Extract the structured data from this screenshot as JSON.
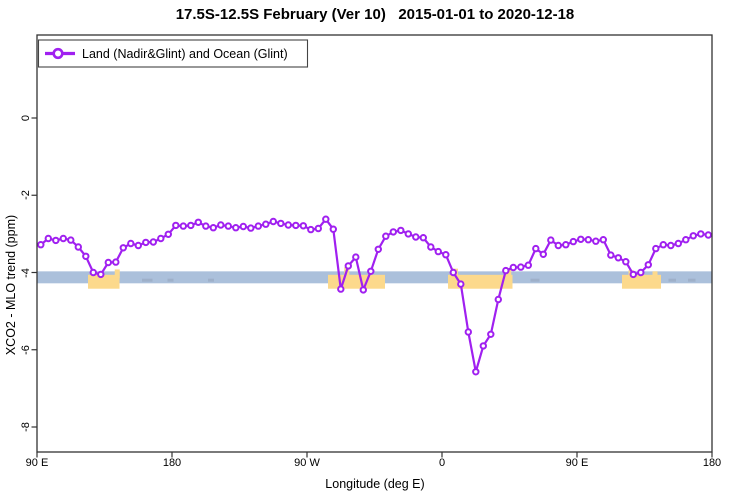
{
  "chart_data": {
    "type": "line",
    "title": "17.5S-12.5S February (Ver 10)   2015-01-01 to 2020-12-18",
    "xlabel": "Longitude (deg E)",
    "ylabel": "XCO2 - MLO trend (ppm)",
    "legend": [
      {
        "label": "Land (Nadir&Glint) and Ocean (Glint)",
        "marker": "open-circle-on-line",
        "color": "#a020f0"
      }
    ],
    "x_axis": {
      "ticks": [
        {
          "lon": 90,
          "label": "90 E"
        },
        {
          "lon": 180,
          "label": "180"
        },
        {
          "lon": 270,
          "label": "90 W"
        },
        {
          "lon": 360,
          "label": "0"
        },
        {
          "lon": 450,
          "label": "90 E"
        },
        {
          "lon": 540,
          "label": "180"
        }
      ],
      "range": [
        90,
        540
      ],
      "note": "longitude axis wraps eastward: 90E to 180 to 90W to 0 to 90E to 180"
    },
    "y_axis": {
      "ticks": [
        {
          "v": 0,
          "label": "0"
        },
        {
          "v": -2,
          "label": "-2"
        },
        {
          "v": -4,
          "label": "-4"
        },
        {
          "v": -6,
          "label": "-6"
        },
        {
          "v": -8,
          "label": "-8"
        }
      ],
      "range": [
        -8.6,
        2.1
      ],
      "tick_labels_rotated": true
    },
    "series": [
      {
        "name": "Land (Nadir&Glint) and Ocean (Glint)",
        "color": "#a020f0",
        "x_lon": [
          92.5,
          97.5,
          102.5,
          107.5,
          112.5,
          117.5,
          122.5,
          127.5,
          132.5,
          137.5,
          142.5,
          147.5,
          152.5,
          157.5,
          162.5,
          167.5,
          172.5,
          177.5,
          182.5,
          187.5,
          192.5,
          197.5,
          202.5,
          207.5,
          212.5,
          217.5,
          222.5,
          227.5,
          232.5,
          237.5,
          242.5,
          247.5,
          252.5,
          257.5,
          262.5,
          267.5,
          272.5,
          277.5,
          282.5,
          287.5,
          292.5,
          297.5,
          302.5,
          307.5,
          312.5,
          317.5,
          322.5,
          327.5,
          332.5,
          337.5,
          342.5,
          347.5,
          352.5,
          357.5,
          362.5,
          367.5,
          372.5,
          377.5,
          382.5,
          387.5,
          392.5,
          397.5,
          402.5,
          407.5,
          412.5,
          417.5,
          422.5,
          427.5,
          432.5,
          437.5,
          442.5,
          447.5,
          452.5,
          457.5,
          462.5,
          467.5,
          472.5,
          477.5,
          482.5,
          487.5,
          492.5,
          497.5,
          502.5,
          507.5,
          512.5,
          517.5,
          522.5,
          527.5,
          532.5,
          537.5
        ],
        "y_ppm": [
          -3.28,
          -3.12,
          -3.17,
          -3.12,
          -3.16,
          -3.34,
          -3.58,
          -4.0,
          -4.05,
          -3.74,
          -3.73,
          -3.36,
          -3.25,
          -3.3,
          -3.22,
          -3.21,
          -3.12,
          -3.01,
          -2.78,
          -2.8,
          -2.78,
          -2.7,
          -2.8,
          -2.84,
          -2.77,
          -2.8,
          -2.84,
          -2.81,
          -2.85,
          -2.8,
          -2.75,
          -2.68,
          -2.73,
          -2.77,
          -2.78,
          -2.79,
          -2.89,
          -2.86,
          -2.62,
          -2.88,
          -4.43,
          -3.83,
          -3.6,
          -4.45,
          -3.97,
          -3.4,
          -3.06,
          -2.95,
          -2.91,
          -3.0,
          -3.08,
          -3.1,
          -3.34,
          -3.46,
          -3.54,
          -4.0,
          -4.3,
          -5.54,
          -6.57,
          -5.9,
          -5.6,
          -4.7,
          -3.95,
          -3.87,
          -3.86,
          -3.81,
          -3.38,
          -3.53,
          -3.16,
          -3.3,
          -3.28,
          -3.2,
          -3.14,
          -3.15,
          -3.19,
          -3.15,
          -3.55,
          -3.62,
          -3.72,
          -4.05,
          -4.0,
          -3.8,
          -3.38,
          -3.28,
          -3.3,
          -3.25,
          -3.15,
          -3.05,
          -3.0,
          -3.03
        ]
      }
    ],
    "bands": {
      "blue_band": {
        "lon_start": 90,
        "lon_end": 540,
        "v_top": -3.97,
        "v_bottom": -4.28,
        "color": "#abc0db"
      },
      "orange_color": "#fcd98c",
      "orange_segments": [
        {
          "lon_start": 124,
          "lon_end": 145
        },
        {
          "lon_start": 284,
          "lon_end": 322
        },
        {
          "lon_start": 364,
          "lon_end": 407
        },
        {
          "lon_start": 480,
          "lon_end": 506
        }
      ],
      "orange_v_top": -4.06,
      "orange_v_bottom": -4.42,
      "orange_bumps": [
        {
          "lon": 143.5,
          "v_top": -3.92
        },
        {
          "lon": 296.5,
          "v_top": -3.86
        },
        {
          "lon": 369,
          "v_top": -3.9
        },
        {
          "lon": 404.5,
          "v_top": -3.9
        },
        {
          "lon": 486,
          "v_top": -3.94
        },
        {
          "lon": 502,
          "v_top": -3.97
        }
      ],
      "gray_color": "#9badc6",
      "gray_dashes": [
        {
          "lon_start": 160,
          "lon_end": 167
        },
        {
          "lon_start": 177,
          "lon_end": 181
        },
        {
          "lon_start": 204,
          "lon_end": 208
        },
        {
          "lon_start": 419,
          "lon_end": 425
        },
        {
          "lon_start": 511,
          "lon_end": 516
        },
        {
          "lon_start": 524,
          "lon_end": 529
        }
      ]
    },
    "grid": false,
    "legend_position": "top-left-inside",
    "frame_color": "#333333"
  }
}
